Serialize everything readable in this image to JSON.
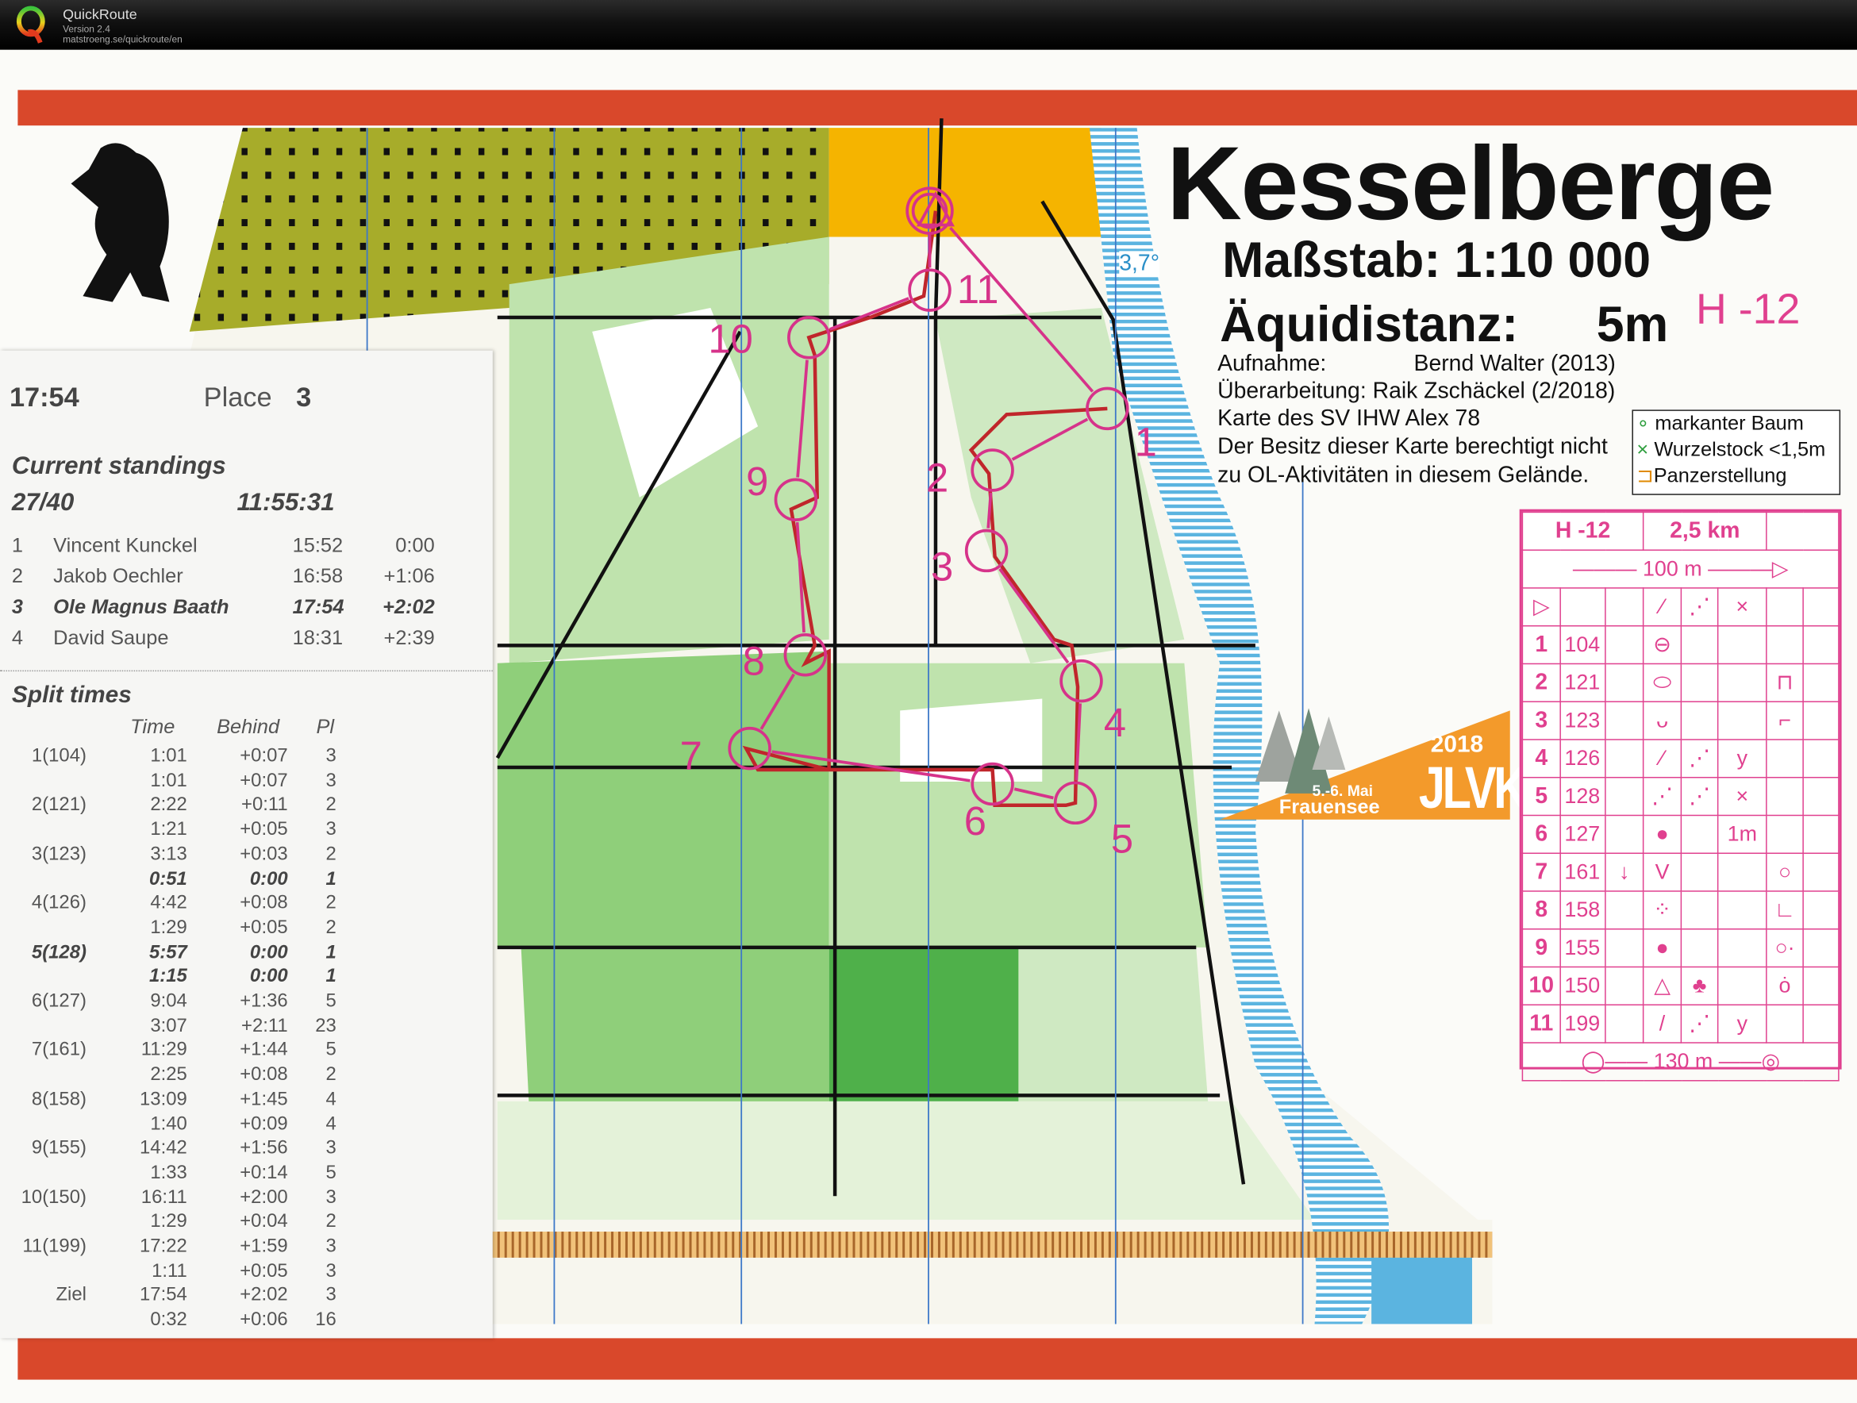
{
  "app": {
    "name": "QuickRoute",
    "version": "Version 2.4",
    "url": "matstroeng.se/quickroute/en"
  },
  "map_header": {
    "title": "Kesselberge",
    "scale": "Maßstab: 1:10 000",
    "equidistance_label": "Äquidistanz:",
    "equidistance_value": "5m",
    "class": "H -12",
    "credits": [
      "Aufnahme:              Bernd Walter (2013)",
      "Überarbeitung: Raik Zschäckel (2/2018)",
      "Karte des SV IHW Alex 78",
      "Der Besitz dieser Karte berechtigt nicht",
      "zu OL-Aktivitäten in diesem Gelände."
    ],
    "legend": [
      {
        "symbol": "∘",
        "label": "markanter Baum",
        "color": "#2e9e3e"
      },
      {
        "symbol": "×",
        "label": "Wurzelstock <1,5m",
        "color": "#2e9e3e"
      },
      {
        "symbol": "⊐",
        "label": "Panzerstellung",
        "color": "#e08a00"
      }
    ],
    "declination": "3,7°"
  },
  "event_logo": {
    "year": "2018",
    "name": "JLVK",
    "date": "5.-6. Mai",
    "place": "Frauensee",
    "color": "#f39a2b"
  },
  "controls": [
    "1",
    "2",
    "3",
    "4",
    "5",
    "6",
    "7",
    "8",
    "9",
    "10",
    "11"
  ],
  "colors": {
    "course": "#d6338a",
    "route": "#c0262b",
    "band": "#d9482b",
    "forest": "#8fcf7a",
    "water": "#5bb4e0",
    "open": "#f5b400"
  },
  "split_slip": {
    "total_time": "17:54",
    "place_label": "Place",
    "place": "3",
    "standings_title": "Current standings",
    "standings_count": "27/40",
    "clock": "11:55:31",
    "standings": [
      {
        "pos": "1",
        "name": "Vincent Kunckel",
        "time": "15:52",
        "behind": "0:00",
        "me": false
      },
      {
        "pos": "2",
        "name": "Jakob Oechler",
        "time": "16:58",
        "behind": "+1:06",
        "me": false
      },
      {
        "pos": "3",
        "name": "Ole Magnus Baath",
        "time": "17:54",
        "behind": "+2:02",
        "me": true
      },
      {
        "pos": "4",
        "name": "David Saupe",
        "time": "18:31",
        "behind": "+2:39",
        "me": false
      }
    ],
    "splits_title": "Split times",
    "headers": {
      "time": "Time",
      "behind": "Behind",
      "place": "Pl"
    },
    "splits": [
      {
        "control": "1(104)",
        "time": "1:01",
        "behind": "+0:07",
        "place": "3",
        "best": false
      },
      {
        "control": "",
        "time": "1:01",
        "behind": "+0:07",
        "place": "3",
        "best": false
      },
      {
        "control": "2(121)",
        "time": "2:22",
        "behind": "+0:11",
        "place": "2",
        "best": false
      },
      {
        "control": "",
        "time": "1:21",
        "behind": "+0:05",
        "place": "3",
        "best": false
      },
      {
        "control": "3(123)",
        "time": "3:13",
        "behind": "+0:03",
        "place": "2",
        "best": false
      },
      {
        "control": "",
        "time": "0:51",
        "behind": "0:00",
        "place": "1",
        "best": true
      },
      {
        "control": "4(126)",
        "time": "4:42",
        "behind": "+0:08",
        "place": "2",
        "best": false
      },
      {
        "control": "",
        "time": "1:29",
        "behind": "+0:05",
        "place": "2",
        "best": false
      },
      {
        "control": "5(128)",
        "time": "5:57",
        "behind": "0:00",
        "place": "1",
        "best": true
      },
      {
        "control": "",
        "time": "1:15",
        "behind": "0:00",
        "place": "1",
        "best": true
      },
      {
        "control": "6(127)",
        "time": "9:04",
        "behind": "+1:36",
        "place": "5",
        "best": false
      },
      {
        "control": "",
        "time": "3:07",
        "behind": "+2:11",
        "place": "23",
        "best": false
      },
      {
        "control": "7(161)",
        "time": "11:29",
        "behind": "+1:44",
        "place": "5",
        "best": false
      },
      {
        "control": "",
        "time": "2:25",
        "behind": "+0:08",
        "place": "2",
        "best": false
      },
      {
        "control": "8(158)",
        "time": "13:09",
        "behind": "+1:45",
        "place": "4",
        "best": false
      },
      {
        "control": "",
        "time": "1:40",
        "behind": "+0:09",
        "place": "4",
        "best": false
      },
      {
        "control": "9(155)",
        "time": "14:42",
        "behind": "+1:56",
        "place": "3",
        "best": false
      },
      {
        "control": "",
        "time": "1:33",
        "behind": "+0:14",
        "place": "5",
        "best": false
      },
      {
        "control": "10(150)",
        "time": "16:11",
        "behind": "+2:00",
        "place": "3",
        "best": false
      },
      {
        "control": "",
        "time": "1:29",
        "behind": "+0:04",
        "place": "2",
        "best": false
      },
      {
        "control": "11(199)",
        "time": "17:22",
        "behind": "+1:59",
        "place": "3",
        "best": false
      },
      {
        "control": "",
        "time": "1:11",
        "behind": "+0:05",
        "place": "3",
        "best": false
      },
      {
        "control": "Ziel",
        "time": "17:54",
        "behind": "+2:02",
        "place": "3",
        "best": false
      },
      {
        "control": "",
        "time": "0:32",
        "behind": "+0:06",
        "place": "16",
        "best": false
      }
    ]
  },
  "control_descriptions": {
    "class": "H -12",
    "length": "2,5 km",
    "start_leg": "100 m",
    "finish_leg": "130 m",
    "start_row": {
      "d": "⁄",
      "e": "⋰",
      "f": "×"
    },
    "rows": [
      {
        "num": "1",
        "code": "104",
        "c": "",
        "d": "⊖",
        "e": "",
        "f": "",
        "g": ""
      },
      {
        "num": "2",
        "code": "121",
        "c": "",
        "d": "⬭",
        "e": "",
        "f": "",
        "g": "⊓"
      },
      {
        "num": "3",
        "code": "123",
        "c": "",
        "d": "ᴗ",
        "e": "",
        "f": "",
        "g": "⌐"
      },
      {
        "num": "4",
        "code": "126",
        "c": "",
        "d": "⁄",
        "e": "⋰",
        "f": "y",
        "g": ""
      },
      {
        "num": "5",
        "code": "128",
        "c": "",
        "d": "⋰",
        "e": "⋰",
        "f": "×",
        "g": ""
      },
      {
        "num": "6",
        "code": "127",
        "c": "",
        "d": "●",
        "e": "",
        "f": "1m",
        "g": ""
      },
      {
        "num": "7",
        "code": "161",
        "c": "↓",
        "d": "V",
        "e": "",
        "f": "",
        "g": "○"
      },
      {
        "num": "8",
        "code": "158",
        "c": "",
        "d": "⁘",
        "e": "",
        "f": "",
        "g": "∟"
      },
      {
        "num": "9",
        "code": "155",
        "c": "",
        "d": "●",
        "e": "",
        "f": "",
        "g": "○·"
      },
      {
        "num": "10",
        "code": "150",
        "c": "",
        "d": "△",
        "e": "♣",
        "f": "",
        "g": "ȯ"
      },
      {
        "num": "11",
        "code": "199",
        "c": "",
        "d": "/",
        "e": "⋰",
        "f": "y",
        "g": ""
      }
    ]
  }
}
